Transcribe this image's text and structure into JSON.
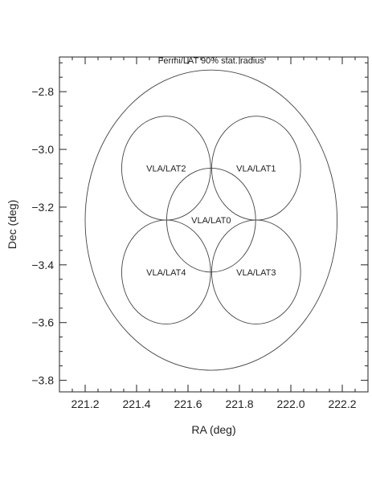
{
  "chart_data": {
    "type": "scatter",
    "title": "",
    "xlabel": "RA (deg)",
    "ylabel": "Dec (deg)",
    "xlim": [
      221.1,
      222.3
    ],
    "ylim": [
      -3.84,
      -2.68
    ],
    "xticks": [
      221.2,
      221.4,
      221.6,
      221.8,
      222.0,
      222.2
    ],
    "yticks": [
      -3.8,
      -3.6,
      -3.4,
      -3.2,
      -3.0,
      -2.8
    ],
    "xtick_labels": [
      "221.2",
      "221.4",
      "221.6",
      "221.8",
      "222.0",
      "222.2"
    ],
    "ytick_labels": [
      "−3.8",
      "−3.6",
      "−3.4",
      "−3.2",
      "−3.0",
      "−2.8"
    ],
    "x_minor_step": 0.05,
    "y_minor_step": 0.05,
    "grid": false,
    "regions": [
      {
        "label": "Fermi/LAT 90% stat. radius",
        "ra": 221.69,
        "dec": -3.245,
        "r_ra": 0.49,
        "r_dec": 0.52,
        "label_pos": "top"
      },
      {
        "label": "VLA/LAT0",
        "ra": 221.69,
        "dec": -3.245,
        "r_ra": 0.173,
        "r_dec": 0.18,
        "label_pos": "center"
      },
      {
        "label": "VLA/LAT1",
        "ra": 221.865,
        "dec": -3.065,
        "r_ra": 0.173,
        "r_dec": 0.18,
        "label_pos": "center"
      },
      {
        "label": "VLA/LAT2",
        "ra": 221.515,
        "dec": -3.065,
        "r_ra": 0.173,
        "r_dec": 0.18,
        "label_pos": "center"
      },
      {
        "label": "VLA/LAT3",
        "ra": 221.865,
        "dec": -3.425,
        "r_ra": 0.173,
        "r_dec": 0.18,
        "label_pos": "center"
      },
      {
        "label": "VLA/LAT4",
        "ra": 221.515,
        "dec": -3.425,
        "r_ra": 0.173,
        "r_dec": 0.18,
        "label_pos": "center"
      }
    ]
  }
}
